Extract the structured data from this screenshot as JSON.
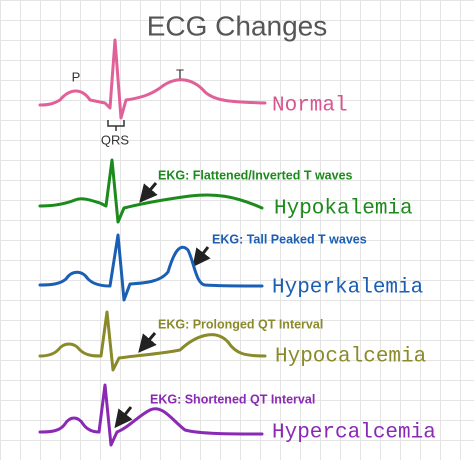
{
  "title": "ECG Changes",
  "normal": {
    "p_label": "P",
    "t_label": "T",
    "qrs_label": "QRS",
    "name": "Normal"
  },
  "rows": [
    {
      "note": "EKG: Flattened/Inverted T waves",
      "name": "Hypokalemia"
    },
    {
      "note": "EKG: Tall Peaked T waves",
      "name": "Hyperkalemia"
    },
    {
      "note": "EKG: Prolonged QT Interval",
      "name": "Hypocalcemia"
    },
    {
      "note": "EKG: Shortened QT Interval",
      "name": "Hypercalcemia"
    }
  ]
}
